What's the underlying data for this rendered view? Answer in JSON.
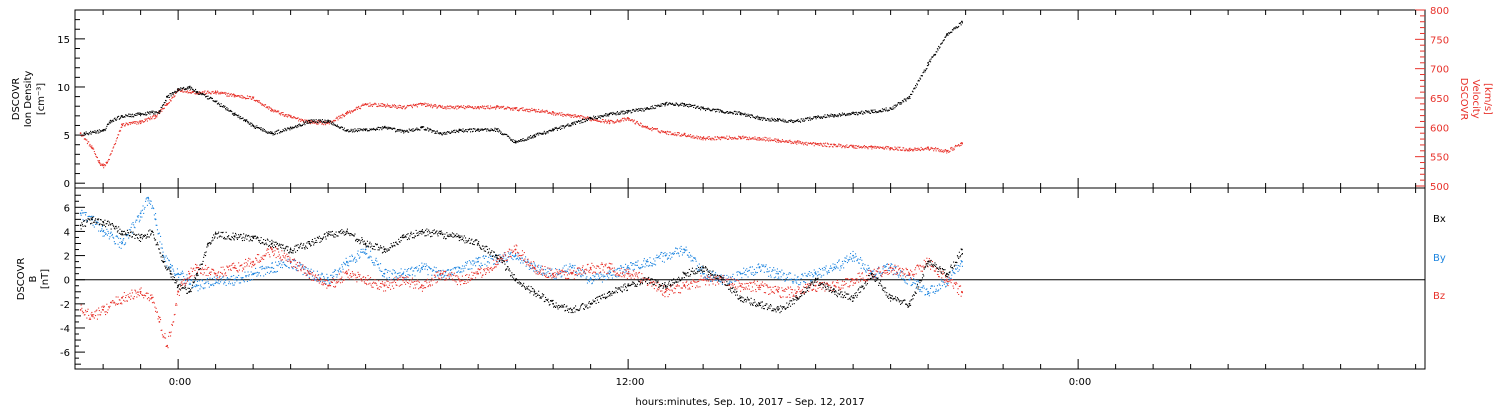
{
  "colors": {
    "black": "#000000",
    "red": "#e8322b",
    "blue": "#1f86e0"
  },
  "xaxis": {
    "label": "hours:minutes, Sep. 10, 2017 – Sep. 12, 2017",
    "tick_labels": [
      "0:00",
      "12:00",
      "0:00"
    ]
  },
  "chart_data": [
    {
      "type": "scatter",
      "title": "",
      "ylabel_left": [
        "DSCOVR",
        "Ion Density",
        "[cm⁻³]"
      ],
      "ylabel_right": [
        "DSCOVR",
        "Velocity",
        "[km/s]"
      ],
      "x_unit": "hours relative to 0:00 Sep. 11, 2017",
      "xlim": [
        -2.75,
        33.25
      ],
      "ylim_left": [
        -0.5,
        18
      ],
      "ylim_right": [
        500,
        800
      ],
      "yticks_left": [
        0,
        5,
        10,
        15
      ],
      "yticks_right": [
        500,
        550,
        600,
        650,
        700,
        750,
        800
      ],
      "grid": false,
      "series": [
        {
          "name": "Ion Density",
          "axis": "left",
          "color": "black",
          "x": [
            -2.5,
            -2.0,
            -1.8,
            -1.5,
            -1.0,
            -0.5,
            -0.3,
            0.0,
            0.3,
            0.5,
            1.0,
            1.5,
            1.8,
            2.0,
            2.5,
            3.0,
            3.5,
            4.0,
            4.5,
            5.0,
            5.5,
            6.0,
            6.5,
            7.0,
            7.5,
            8.0,
            8.5,
            9.0,
            9.5,
            10.0,
            10.5,
            11.0,
            11.5,
            12.0,
            12.5,
            13.0,
            13.5,
            14.0,
            14.5,
            15.0,
            15.5,
            16.0,
            16.5,
            17.0,
            17.5,
            18.0,
            18.5,
            19.0,
            19.5,
            20.0,
            20.5,
            20.9
          ],
          "y": [
            5.2,
            5.5,
            6.5,
            7.0,
            7.2,
            7.5,
            9.0,
            9.8,
            10.0,
            9.5,
            8.5,
            7.2,
            6.5,
            6.0,
            5.2,
            5.8,
            6.5,
            6.5,
            5.5,
            5.6,
            5.8,
            5.4,
            5.8,
            5.2,
            5.5,
            5.6,
            5.6,
            4.3,
            5.0,
            5.6,
            6.2,
            6.8,
            7.2,
            7.5,
            7.8,
            8.3,
            8.2,
            7.8,
            7.5,
            7.3,
            6.8,
            6.6,
            6.5,
            6.9,
            7.1,
            7.3,
            7.5,
            7.8,
            9.0,
            12.5,
            15.5,
            16.8
          ]
        },
        {
          "name": "Velocity",
          "axis": "right",
          "color": "red",
          "x": [
            -2.6,
            -2.3,
            -2.1,
            -2.0,
            -1.9,
            -1.5,
            -1.0,
            -0.6,
            -0.3,
            0.0,
            0.5,
            1.0,
            1.5,
            2.0,
            2.5,
            3.0,
            3.5,
            4.0,
            4.5,
            5.0,
            5.5,
            6.0,
            6.5,
            7.0,
            7.5,
            8.0,
            8.5,
            9.0,
            9.5,
            10.0,
            10.5,
            11.0,
            11.5,
            12.0,
            12.5,
            13.0,
            13.5,
            14.0,
            14.5,
            15.0,
            15.5,
            16.0,
            16.5,
            17.0,
            17.5,
            18.0,
            18.5,
            19.0,
            19.5,
            20.0,
            20.5,
            20.9
          ],
          "y": [
            590,
            565,
            540,
            535,
            540,
            605,
            610,
            620,
            640,
            665,
            660,
            660,
            655,
            650,
            630,
            618,
            610,
            608,
            625,
            640,
            638,
            635,
            640,
            635,
            635,
            635,
            635,
            632,
            630,
            625,
            620,
            615,
            610,
            615,
            600,
            592,
            588,
            582,
            583,
            583,
            582,
            578,
            575,
            572,
            570,
            568,
            567,
            565,
            563,
            565,
            560,
            573
          ]
        }
      ]
    },
    {
      "type": "scatter",
      "title": "",
      "ylabel_left": [
        "DSCOVR",
        "B",
        "[nT]"
      ],
      "x_unit": "hours relative to 0:00 Sep. 11, 2017",
      "xlim": [
        -2.75,
        33.25
      ],
      "ylim": [
        -7.4,
        7.6
      ],
      "yticks": [
        -6,
        -4,
        -2,
        0,
        2,
        4,
        6
      ],
      "zero_line": true,
      "grid": false,
      "legend": {
        "position": "right",
        "entries": [
          "Bx",
          "By",
          "Bz"
        ]
      },
      "series": [
        {
          "name": "Bx",
          "color": "black",
          "x": [
            -2.6,
            -2.3,
            -2.0,
            -1.5,
            -1.0,
            -0.7,
            -0.4,
            -0.2,
            0.0,
            0.3,
            0.5,
            0.8,
            1.0,
            1.5,
            2.0,
            2.5,
            3.0,
            3.5,
            4.0,
            4.5,
            5.0,
            5.5,
            6.0,
            6.5,
            7.0,
            7.5,
            8.0,
            8.5,
            9.0,
            9.5,
            10.0,
            10.5,
            11.0,
            11.5,
            12.0,
            12.5,
            13.0,
            13.5,
            14.0,
            14.5,
            15.0,
            15.5,
            16.0,
            16.5,
            17.0,
            17.5,
            18.0,
            18.5,
            19.0,
            19.5,
            20.0,
            20.5,
            20.9
          ],
          "y": [
            4.5,
            5.0,
            4.8,
            4.0,
            3.5,
            4.0,
            1.5,
            0.5,
            -0.5,
            -1.0,
            0.5,
            3.0,
            3.8,
            3.6,
            3.5,
            3.0,
            2.5,
            3.0,
            3.8,
            4.0,
            3.0,
            2.5,
            3.5,
            4.0,
            3.8,
            3.5,
            3.0,
            2.0,
            0.0,
            -1.0,
            -2.0,
            -2.5,
            -2.0,
            -1.0,
            -0.5,
            0.0,
            -0.5,
            0.5,
            1.0,
            0.0,
            -1.5,
            -2.0,
            -2.5,
            -1.5,
            0.0,
            -1.0,
            -1.5,
            0.5,
            -1.5,
            -2.0,
            1.5,
            0.5,
            2.5
          ]
        },
        {
          "name": "By",
          "color": "blue",
          "x": [
            -2.6,
            -2.3,
            -2.0,
            -1.5,
            -1.0,
            -0.8,
            -0.6,
            -0.4,
            -0.2,
            0.0,
            0.5,
            1.0,
            1.5,
            2.0,
            2.5,
            3.0,
            3.5,
            4.0,
            4.5,
            5.0,
            5.5,
            6.0,
            6.5,
            7.0,
            7.5,
            8.0,
            8.5,
            9.0,
            9.5,
            10.0,
            10.5,
            11.0,
            11.5,
            12.0,
            12.5,
            13.0,
            13.5,
            14.0,
            14.5,
            15.0,
            15.5,
            16.0,
            16.5,
            17.0,
            17.5,
            18.0,
            18.5,
            19.0,
            19.5,
            20.0,
            20.5,
            20.9
          ],
          "y": [
            5.5,
            5.0,
            4.0,
            3.0,
            5.5,
            6.8,
            5.0,
            2.0,
            1.0,
            0.5,
            -0.5,
            0.0,
            0.0,
            0.5,
            1.0,
            1.5,
            0.5,
            0.0,
            1.5,
            2.5,
            0.5,
            0.5,
            1.0,
            0.5,
            1.0,
            1.5,
            1.8,
            2.0,
            1.0,
            0.5,
            1.0,
            0.0,
            0.5,
            1.0,
            1.5,
            2.0,
            2.5,
            0.5,
            0.0,
            0.5,
            1.0,
            0.5,
            0.0,
            0.5,
            1.0,
            2.0,
            0.5,
            1.0,
            0.0,
            -1.0,
            0.0,
            1.5
          ]
        },
        {
          "name": "Bz",
          "color": "red",
          "x": [
            -2.6,
            -2.3,
            -2.0,
            -1.5,
            -1.0,
            -0.7,
            -0.5,
            -0.3,
            0.0,
            0.3,
            0.5,
            1.0,
            1.5,
            2.0,
            2.5,
            3.0,
            3.5,
            4.0,
            4.5,
            5.0,
            5.5,
            6.0,
            6.5,
            7.0,
            7.5,
            8.0,
            8.5,
            9.0,
            9.5,
            10.0,
            10.5,
            11.0,
            11.5,
            12.0,
            12.5,
            13.0,
            13.5,
            14.0,
            14.5,
            15.0,
            15.5,
            16.0,
            16.5,
            17.0,
            17.5,
            18.0,
            18.5,
            19.0,
            19.5,
            20.0,
            20.5,
            20.9
          ],
          "y": [
            -2.5,
            -3.0,
            -2.5,
            -1.5,
            -1.0,
            -1.5,
            -3.5,
            -5.5,
            -1.0,
            0.5,
            1.0,
            0.5,
            1.0,
            1.5,
            2.5,
            1.5,
            0.5,
            -0.5,
            0.5,
            0.0,
            -0.5,
            0.0,
            -0.5,
            0.5,
            0.0,
            0.5,
            1.5,
            2.5,
            1.0,
            0.5,
            0.5,
            1.0,
            1.0,
            0.5,
            0.0,
            -1.0,
            -0.5,
            0.0,
            0.0,
            -0.5,
            -0.5,
            -1.0,
            -1.0,
            -0.5,
            -0.5,
            0.0,
            0.5,
            1.0,
            0.5,
            1.5,
            0.0,
            -1.0
          ]
        }
      ]
    }
  ]
}
